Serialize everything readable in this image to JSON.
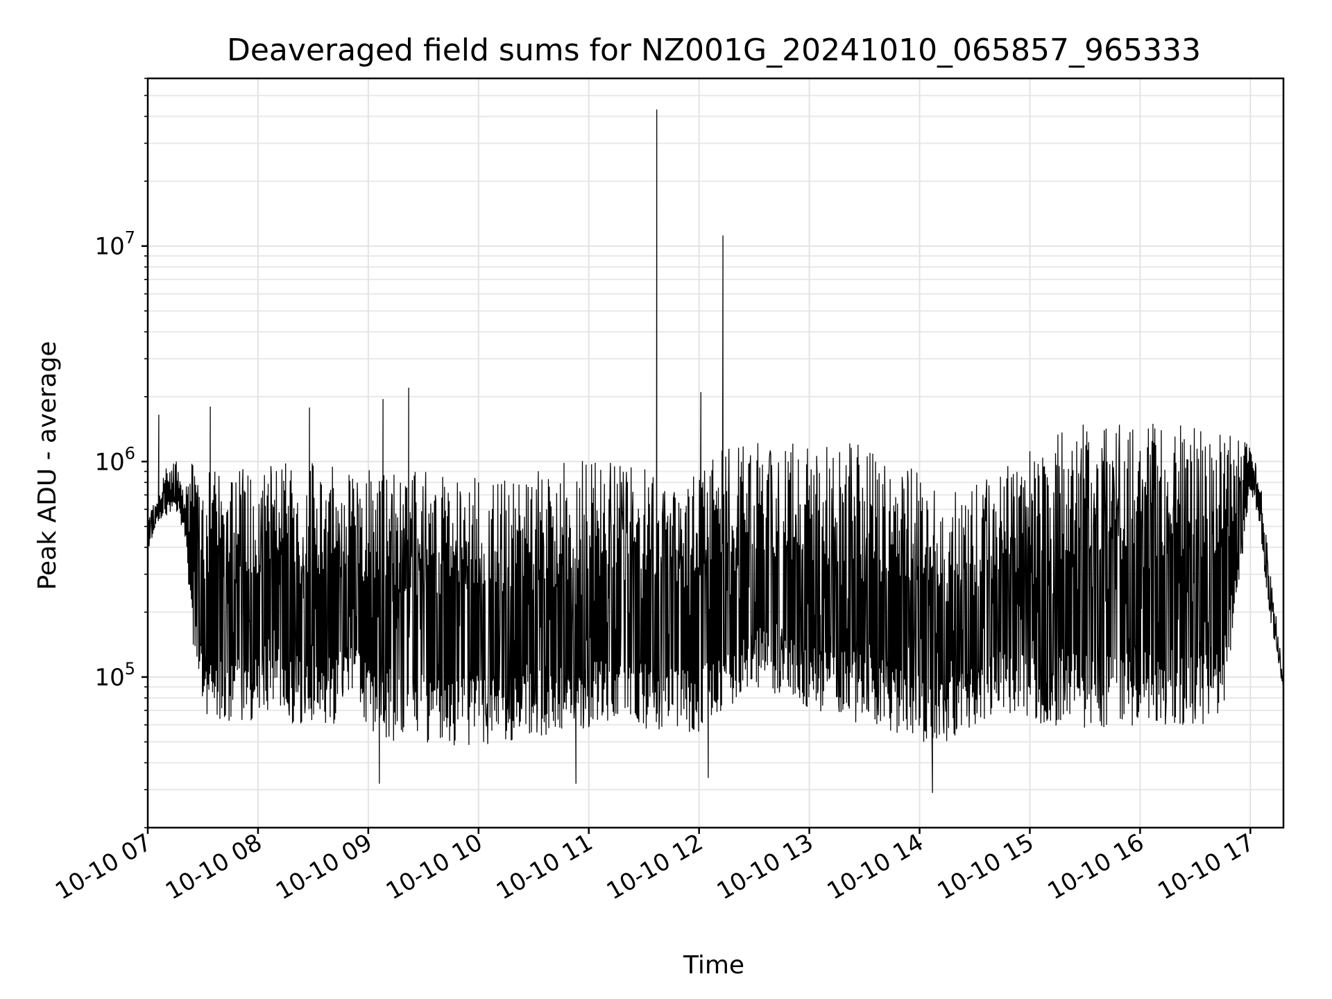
{
  "chart_data": {
    "type": "line",
    "title": "Deaveraged field sums for NZ001G_20241010_065857_965333",
    "xlabel": "Time",
    "ylabel": "Peak ADU - average",
    "yscale": "log",
    "ylim": [
      20000,
      60000000
    ],
    "xlim": [
      "2024-10-10 07:00",
      "2024-10-10 17:18"
    ],
    "grid": "both (major and minor)",
    "legend": "none",
    "line_color": "#000000",
    "x_ticks": [
      "10-10 07",
      "10-10 08",
      "10-10 09",
      "10-10 10",
      "10-10 11",
      "10-10 12",
      "10-10 13",
      "10-10 14",
      "10-10 15",
      "10-10 16",
      "10-10 17"
    ],
    "y_ticks": [
      {
        "value": 100000,
        "base": "10",
        "exp": "5"
      },
      {
        "value": 1000000,
        "base": "10",
        "exp": "6"
      },
      {
        "value": 10000000,
        "base": "10",
        "exp": "7"
      }
    ],
    "series": [
      {
        "x": [
          "2024-10-10 07:00",
          "2024-10-10 07:05",
          "2024-10-10 07:10",
          "2024-10-10 07:15",
          "2024-10-10 07:20",
          "2024-10-10 07:25",
          "2024-10-10 07:30",
          "2024-10-10 07:33",
          "2024-10-10 07:35",
          "2024-10-10 07:40",
          "2024-10-10 07:45",
          "2024-10-10 07:50",
          "2024-10-10 07:55",
          "2024-10-10 08:00",
          "2024-10-10 08:10",
          "2024-10-10 08:20",
          "2024-10-10 08:30",
          "2024-10-10 08:40",
          "2024-10-10 08:50",
          "2024-10-10 09:00",
          "2024-10-10 09:15",
          "2024-10-10 09:30",
          "2024-10-10 09:45",
          "2024-10-10 10:00",
          "2024-10-10 10:15",
          "2024-10-10 10:30",
          "2024-10-10 10:45",
          "2024-10-10 11:00",
          "2024-10-10 11:15",
          "2024-10-10 11:30",
          "2024-10-10 11:38",
          "2024-10-10 11:45",
          "2024-10-10 12:00",
          "2024-10-10 12:14",
          "2024-10-10 12:30",
          "2024-10-10 12:45",
          "2024-10-10 13:00",
          "2024-10-10 13:15",
          "2024-10-10 13:30",
          "2024-10-10 13:45",
          "2024-10-10 14:00",
          "2024-10-10 14:15",
          "2024-10-10 14:30",
          "2024-10-10 14:45",
          "2024-10-10 15:00",
          "2024-10-10 15:15",
          "2024-10-10 15:30",
          "2024-10-10 15:45",
          "2024-10-10 16:00",
          "2024-10-10 16:15",
          "2024-10-10 16:30",
          "2024-10-10 16:45",
          "2024-10-10 17:00",
          "2024-10-10 17:05",
          "2024-10-10 17:10",
          "2024-10-10 17:15",
          "2024-10-10 17:18"
        ],
        "y_low": [
          380000,
          520000,
          560000,
          600000,
          450000,
          130000,
          70000,
          60000,
          60000,
          62000,
          62000,
          62000,
          62000,
          65000,
          65000,
          60000,
          58000,
          55000,
          90000,
          55000,
          50000,
          50000,
          48000,
          48000,
          50000,
          52000,
          54000,
          58000,
          62000,
          58000,
          55000,
          55000,
          55000,
          70000,
          90000,
          80000,
          70000,
          65000,
          60000,
          55000,
          50000,
          50000,
          60000,
          70000,
          62000,
          58000,
          58000,
          58000,
          60000,
          60000,
          58000,
          65000,
          750000,
          500000,
          200000,
          120000,
          85000
        ],
        "y_high": [
          550000,
          700000,
          950000,
          1050000,
          800000,
          1100000,
          800000,
          900000,
          950000,
          850000,
          850000,
          1000000,
          1100000,
          1000000,
          950000,
          1100000,
          1100000,
          1000000,
          950000,
          950000,
          900000,
          900000,
          850000,
          850000,
          850000,
          900000,
          1000000,
          1100000,
          1000000,
          950000,
          900000,
          900000,
          900000,
          1200000,
          1300000,
          1300000,
          1200000,
          1250000,
          1250000,
          1100000,
          1000000,
          750000,
          800000,
          900000,
          1200000,
          1400000,
          1500000,
          1500000,
          1500000,
          1500000,
          1450000,
          1400000,
          1200000,
          900000,
          350000,
          170000,
          95000
        ]
      }
    ],
    "spikes": [
      {
        "x": "2024-10-10 07:06",
        "y": 1650000
      },
      {
        "x": "2024-10-10 07:34",
        "y": 1800000
      },
      {
        "x": "2024-10-10 08:28",
        "y": 1780000
      },
      {
        "x": "2024-10-10 09:08",
        "y": 1950000
      },
      {
        "x": "2024-10-10 09:22",
        "y": 2200000
      },
      {
        "x": "2024-10-10 11:37",
        "y": 43000000
      },
      {
        "x": "2024-10-10 12:01",
        "y": 2100000
      },
      {
        "x": "2024-10-10 12:13",
        "y": 11200000
      }
    ],
    "dips": [
      {
        "x": "2024-10-10 09:06",
        "y": 32000
      },
      {
        "x": "2024-10-10 10:53",
        "y": 32000
      },
      {
        "x": "2024-10-10 12:05",
        "y": 34000
      },
      {
        "x": "2024-10-10 14:07",
        "y": 29000
      }
    ]
  }
}
